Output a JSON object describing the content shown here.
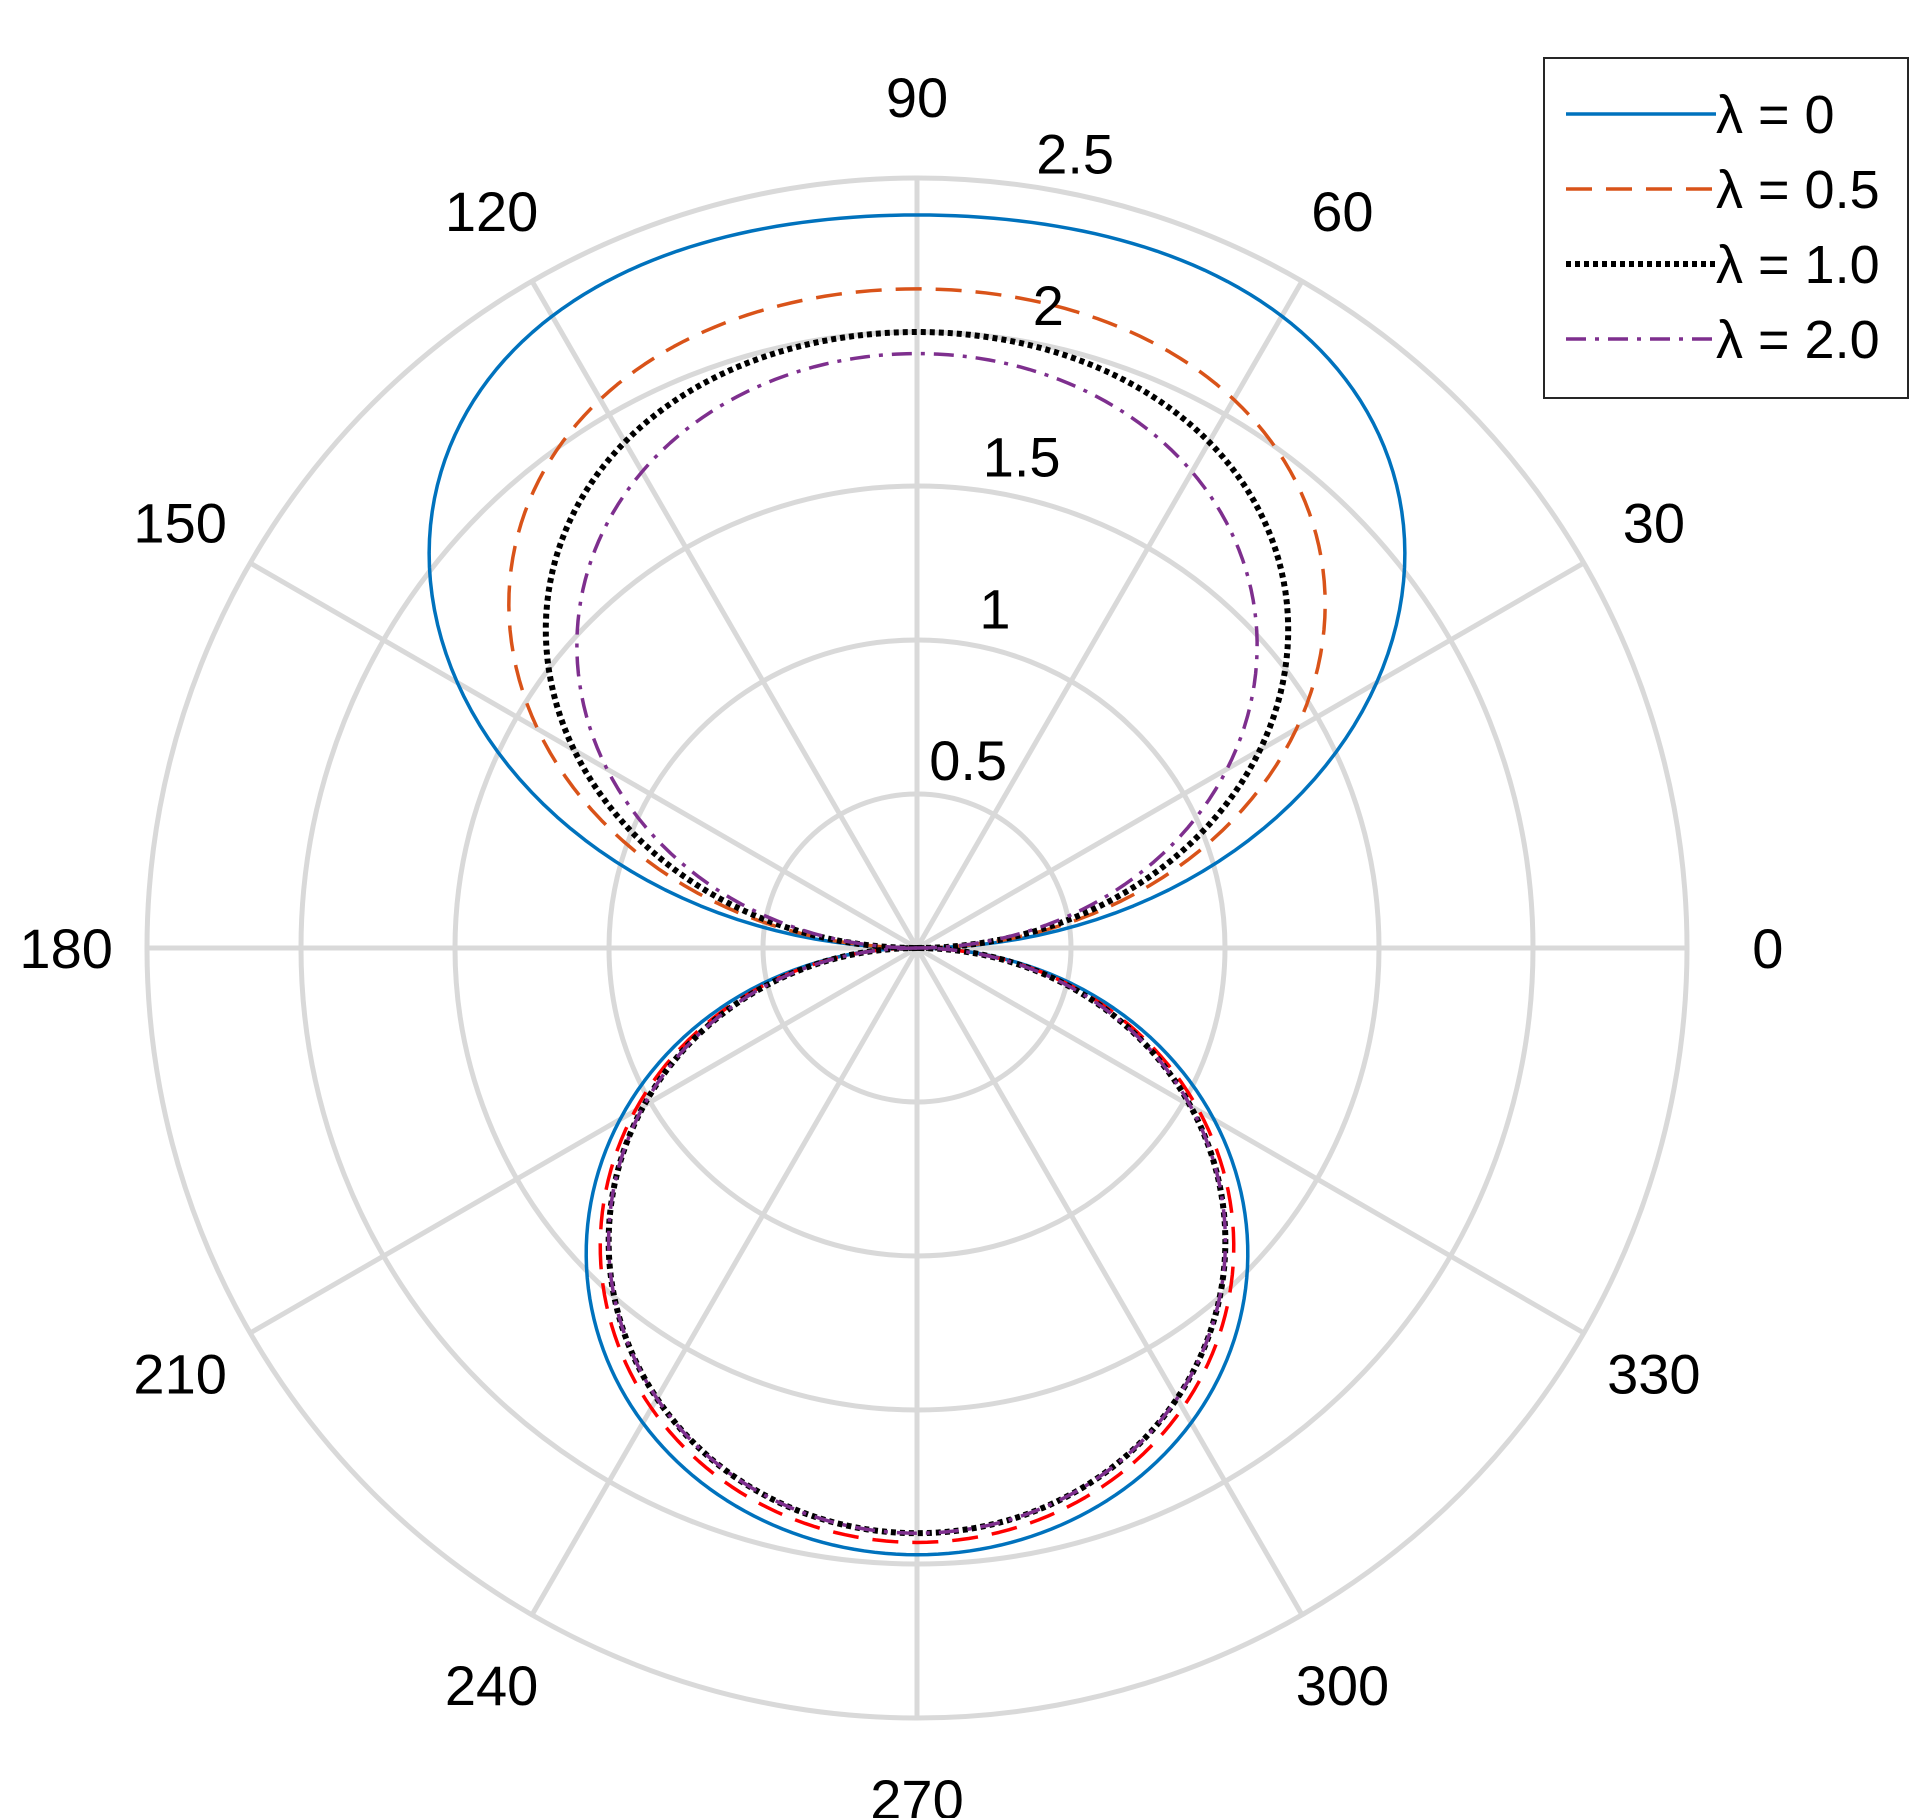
{
  "chart_data": {
    "type": "polar-line",
    "angle_ticks": [
      "0",
      "30",
      "60",
      "90",
      "120",
      "150",
      "180",
      "210",
      "240",
      "270",
      "300",
      "330"
    ],
    "angle_tick_values": [
      0,
      30,
      60,
      90,
      120,
      150,
      180,
      210,
      240,
      270,
      300,
      330
    ],
    "radial_ticks": [
      "0.5",
      "1",
      "1.5",
      "2",
      "2.5"
    ],
    "radial_tick_values": [
      0.5,
      1,
      1.5,
      2,
      2.5
    ],
    "rlim": [
      0,
      2.5
    ],
    "grid": true,
    "legend_position": "top-right",
    "series": [
      {
        "name": "λ = 0",
        "style": "solid",
        "color": "#0072BD",
        "upper_max": 2.38,
        "upper_shape": 0.23,
        "lower_max": 1.97,
        "lower_shape": 0.08
      },
      {
        "name": "λ = 0.5",
        "style": "dashed",
        "color": "#D95319",
        "lower_color": "#FF0000",
        "upper_max": 2.14,
        "upper_shape": 0.18,
        "lower_max": 1.93,
        "lower_shape": 0.06
      },
      {
        "name": "λ = 1.0",
        "style": "dotted",
        "color": "#000000",
        "upper_max": 2.0,
        "upper_shape": 0.16,
        "lower_max": 1.9,
        "lower_shape": 0.05
      },
      {
        "name": "λ = 2.0",
        "style": "dashdot",
        "color": "#7E2F8E",
        "upper_max": 1.93,
        "upper_shape": 0.12,
        "lower_max": 1.9,
        "lower_shape": 0.05
      }
    ]
  }
}
